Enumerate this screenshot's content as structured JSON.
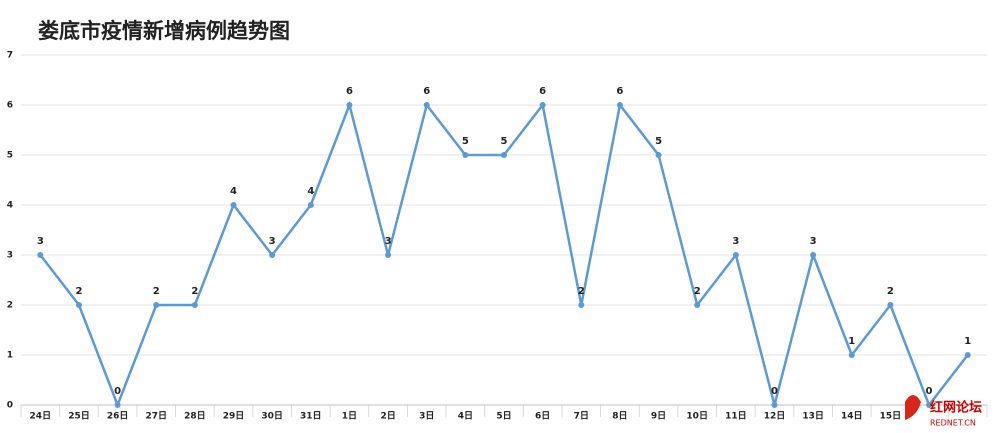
{
  "chart_data": {
    "type": "line",
    "title": "娄底市疫情新增病例趋势图",
    "categories": [
      "24日",
      "25日",
      "26日",
      "27日",
      "28日",
      "29日",
      "30日",
      "31日",
      "1日",
      "2日",
      "3日",
      "4日",
      "5日",
      "6日",
      "7日",
      "8日",
      "9日",
      "10日",
      "11日",
      "12日",
      "13日",
      "14日",
      "15日",
      null,
      null
    ],
    "values": [
      3,
      2,
      0,
      2,
      2,
      4,
      3,
      4,
      6,
      3,
      6,
      5,
      5,
      6,
      2,
      6,
      5,
      2,
      3,
      0,
      3,
      1,
      2,
      0,
      1
    ],
    "color": "#5b9bd5",
    "ylim": [
      0,
      7
    ],
    "yticks": [
      0,
      1,
      2,
      3,
      4,
      5,
      6,
      7
    ],
    "grid": true,
    "watermark": {
      "name": "红网论坛",
      "url": "REDNET.CN"
    }
  }
}
